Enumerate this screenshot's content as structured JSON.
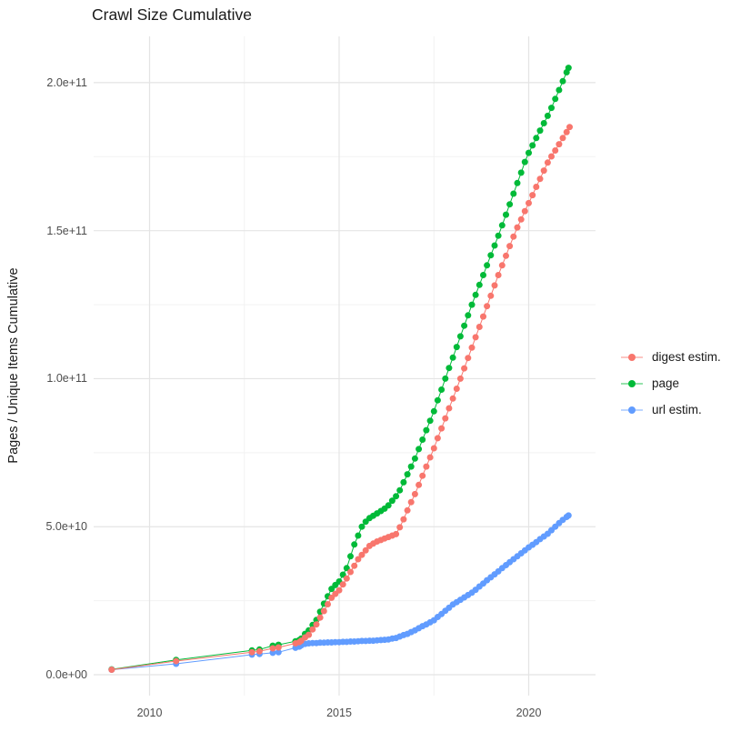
{
  "title": "Crawl Size Cumulative",
  "y_axis": {
    "title": "Pages / Unique Items Cumulative",
    "ticks": [
      {
        "value_billions": 0,
        "label": "0.0e+00"
      },
      {
        "value_billions": 50,
        "label": "5.0e+10"
      },
      {
        "value_billions": 100,
        "label": "1.0e+11"
      },
      {
        "value_billions": 150,
        "label": "1.5e+11"
      },
      {
        "value_billions": 200,
        "label": "2.0e+11"
      }
    ],
    "minor_billions": [
      25,
      75,
      125,
      175
    ]
  },
  "x_axis": {
    "ticks": [
      {
        "value": 2010,
        "label": "2010"
      },
      {
        "value": 2015,
        "label": "2015"
      },
      {
        "value": 2020,
        "label": "2020"
      }
    ],
    "minor": [
      2012.5,
      2017.5
    ]
  },
  "legend": {
    "items": [
      {
        "label": "digest estim.",
        "color": "#F8766D"
      },
      {
        "label": "page",
        "color": "#00BA38"
      },
      {
        "label": "url estim.",
        "color": "#619CFF"
      }
    ]
  },
  "chart_data": {
    "type": "scatter",
    "title": "Crawl Size Cumulative",
    "xlabel": "",
    "ylabel": "Pages / Unique Items Cumulative",
    "x_unit": "year",
    "y_unit": "count (billions, 1e9)",
    "xlim": [
      2008.5,
      2021.8
    ],
    "ylim_billions": [
      -8,
      216
    ],
    "grid": true,
    "legend_position": "right",
    "draw_order": [
      "page",
      "url estim.",
      "digest estim."
    ],
    "series": [
      {
        "name": "digest estim.",
        "color": "#F8766D",
        "points": [
          [
            2009.0,
            1.7
          ],
          [
            2010.7,
            4.6
          ],
          [
            2012.7,
            7.6
          ],
          [
            2012.9,
            7.9
          ],
          [
            2013.25,
            8.9
          ],
          [
            2013.4,
            9.2
          ],
          [
            2013.85,
            10.6
          ],
          [
            2013.95,
            11.0
          ],
          [
            2014.0,
            11.5
          ],
          [
            2014.1,
            12.6
          ],
          [
            2014.2,
            13.5
          ],
          [
            2014.3,
            15.3
          ],
          [
            2014.4,
            17
          ],
          [
            2014.5,
            19.3
          ],
          [
            2014.6,
            21.5
          ],
          [
            2014.7,
            23.8
          ],
          [
            2014.8,
            26
          ],
          [
            2014.9,
            27.3
          ],
          [
            2015.0,
            28.5
          ],
          [
            2015.1,
            30.5
          ],
          [
            2015.2,
            32.5
          ],
          [
            2015.3,
            34.7
          ],
          [
            2015.4,
            36.8
          ],
          [
            2015.5,
            39
          ],
          [
            2015.6,
            40.5
          ],
          [
            2015.7,
            42
          ],
          [
            2015.8,
            43.5
          ],
          [
            2015.9,
            44.3
          ],
          [
            2016.0,
            45
          ],
          [
            2016.1,
            45.5
          ],
          [
            2016.2,
            46
          ],
          [
            2016.3,
            46.5
          ],
          [
            2016.4,
            47
          ],
          [
            2016.5,
            47.5
          ],
          [
            2016.6,
            49.8
          ],
          [
            2016.7,
            52.5
          ],
          [
            2016.8,
            55.5
          ],
          [
            2016.9,
            58.3
          ],
          [
            2017.0,
            61
          ],
          [
            2017.1,
            64.1
          ],
          [
            2017.2,
            67.2
          ],
          [
            2017.3,
            70.3
          ],
          [
            2017.4,
            73.4
          ],
          [
            2017.5,
            76.5
          ],
          [
            2017.6,
            79.9
          ],
          [
            2017.7,
            83.2
          ],
          [
            2017.8,
            86.6
          ],
          [
            2017.9,
            90
          ],
          [
            2018.0,
            93.3
          ],
          [
            2018.1,
            96.6
          ],
          [
            2018.2,
            100
          ],
          [
            2018.3,
            103.5
          ],
          [
            2018.4,
            107
          ],
          [
            2018.5,
            110.5
          ],
          [
            2018.6,
            114
          ],
          [
            2018.7,
            117.5
          ],
          [
            2018.8,
            121
          ],
          [
            2018.9,
            124.5
          ],
          [
            2019.0,
            128
          ],
          [
            2019.1,
            131.5
          ],
          [
            2019.2,
            135
          ],
          [
            2019.3,
            138.3
          ],
          [
            2019.4,
            141.5
          ],
          [
            2019.5,
            144.8
          ],
          [
            2019.6,
            148
          ],
          [
            2019.7,
            151.1
          ],
          [
            2019.8,
            153.8
          ],
          [
            2019.9,
            156.6
          ],
          [
            2020.0,
            159.3
          ],
          [
            2020.1,
            162
          ],
          [
            2020.2,
            164.8
          ],
          [
            2020.3,
            167.5
          ],
          [
            2020.4,
            170.3
          ],
          [
            2020.5,
            173
          ],
          [
            2020.6,
            175.1
          ],
          [
            2020.7,
            177.1
          ],
          [
            2020.8,
            179.2
          ],
          [
            2020.9,
            181.3
          ],
          [
            2021.0,
            183.3
          ],
          [
            2021.08,
            185
          ]
        ]
      },
      {
        "name": "page",
        "color": "#00BA38",
        "points": [
          [
            2009.0,
            1.8
          ],
          [
            2010.7,
            5.0
          ],
          [
            2012.7,
            8.2
          ],
          [
            2012.9,
            8.5
          ],
          [
            2013.25,
            9.8
          ],
          [
            2013.4,
            10.1
          ],
          [
            2013.85,
            11.3
          ],
          [
            2013.95,
            11.7
          ],
          [
            2014.0,
            12.2
          ],
          [
            2014.1,
            13.8
          ],
          [
            2014.2,
            15
          ],
          [
            2014.3,
            16.8
          ],
          [
            2014.4,
            18.5
          ],
          [
            2014.5,
            21.3
          ],
          [
            2014.6,
            24
          ],
          [
            2014.7,
            26.5
          ],
          [
            2014.8,
            29
          ],
          [
            2014.9,
            30.3
          ],
          [
            2015.0,
            31.5
          ],
          [
            2015.1,
            33.8
          ],
          [
            2015.2,
            36
          ],
          [
            2015.3,
            40
          ],
          [
            2015.4,
            44
          ],
          [
            2015.5,
            47
          ],
          [
            2015.6,
            50
          ],
          [
            2015.7,
            51.7
          ],
          [
            2015.8,
            52.9
          ],
          [
            2015.9,
            53.7
          ],
          [
            2016.0,
            54.5
          ],
          [
            2016.1,
            55.3
          ],
          [
            2016.2,
            56.1
          ],
          [
            2016.3,
            57.2
          ],
          [
            2016.4,
            58.8
          ],
          [
            2016.5,
            60.3
          ],
          [
            2016.6,
            62.3
          ],
          [
            2016.7,
            65
          ],
          [
            2016.8,
            67.7
          ],
          [
            2016.9,
            70.3
          ],
          [
            2017.0,
            73
          ],
          [
            2017.1,
            76.2
          ],
          [
            2017.2,
            79.4
          ],
          [
            2017.3,
            82.6
          ],
          [
            2017.4,
            85.8
          ],
          [
            2017.5,
            89
          ],
          [
            2017.6,
            92.7
          ],
          [
            2017.7,
            96.3
          ],
          [
            2017.8,
            100
          ],
          [
            2017.9,
            103.6
          ],
          [
            2018.0,
            107.1
          ],
          [
            2018.1,
            110.7
          ],
          [
            2018.2,
            114.3
          ],
          [
            2018.3,
            117.9
          ],
          [
            2018.4,
            121.4
          ],
          [
            2018.5,
            125
          ],
          [
            2018.6,
            128.3
          ],
          [
            2018.7,
            131.7
          ],
          [
            2018.8,
            135
          ],
          [
            2018.9,
            138.3
          ],
          [
            2019.0,
            141.7
          ],
          [
            2019.1,
            145
          ],
          [
            2019.2,
            148.3
          ],
          [
            2019.3,
            151.8
          ],
          [
            2019.4,
            155.4
          ],
          [
            2019.5,
            158.9
          ],
          [
            2019.6,
            162.5
          ],
          [
            2019.7,
            166.1
          ],
          [
            2019.8,
            169.6
          ],
          [
            2019.9,
            173.2
          ],
          [
            2020.0,
            176.3
          ],
          [
            2020.1,
            178.8
          ],
          [
            2020.2,
            181.3
          ],
          [
            2020.3,
            183.8
          ],
          [
            2020.4,
            186.3
          ],
          [
            2020.5,
            188.8
          ],
          [
            2020.6,
            191.5
          ],
          [
            2020.7,
            194.5
          ],
          [
            2020.8,
            197.5
          ],
          [
            2020.9,
            200.5
          ],
          [
            2021.0,
            203.5
          ],
          [
            2021.05,
            205
          ]
        ]
      },
      {
        "name": "url estim.",
        "color": "#619CFF",
        "points": [
          [
            2009.0,
            1.7
          ],
          [
            2010.7,
            3.7
          ],
          [
            2012.7,
            6.8
          ],
          [
            2012.9,
            7.0
          ],
          [
            2013.25,
            7.4
          ],
          [
            2013.4,
            7.6
          ],
          [
            2013.85,
            9.1
          ],
          [
            2013.95,
            9.5
          ],
          [
            2014.0,
            9.9
          ],
          [
            2014.1,
            10.4
          ],
          [
            2014.2,
            10.6
          ],
          [
            2014.3,
            10.7
          ],
          [
            2014.4,
            10.7
          ],
          [
            2014.5,
            10.8
          ],
          [
            2014.6,
            10.8
          ],
          [
            2014.7,
            10.9
          ],
          [
            2014.8,
            10.9
          ],
          [
            2014.9,
            11
          ],
          [
            2015.0,
            11
          ],
          [
            2015.1,
            11.1
          ],
          [
            2015.2,
            11.1
          ],
          [
            2015.3,
            11.2
          ],
          [
            2015.4,
            11.2
          ],
          [
            2015.5,
            11.3
          ],
          [
            2015.6,
            11.4
          ],
          [
            2015.7,
            11.4
          ],
          [
            2015.8,
            11.5
          ],
          [
            2015.9,
            11.5
          ],
          [
            2016.0,
            11.6
          ],
          [
            2016.1,
            11.7
          ],
          [
            2016.2,
            11.8
          ],
          [
            2016.3,
            11.9
          ],
          [
            2016.4,
            12.2
          ],
          [
            2016.5,
            12.4
          ],
          [
            2016.6,
            12.9
          ],
          [
            2016.7,
            13.4
          ],
          [
            2016.8,
            13.8
          ],
          [
            2016.9,
            14.4
          ],
          [
            2017.0,
            15
          ],
          [
            2017.1,
            15.7
          ],
          [
            2017.2,
            16.4
          ],
          [
            2017.3,
            17
          ],
          [
            2017.4,
            17.7
          ],
          [
            2017.5,
            18.4
          ],
          [
            2017.6,
            19.5
          ],
          [
            2017.7,
            20.5
          ],
          [
            2017.8,
            21.6
          ],
          [
            2017.9,
            22.6
          ],
          [
            2018.0,
            23.7
          ],
          [
            2018.1,
            24.5
          ],
          [
            2018.2,
            25.3
          ],
          [
            2018.3,
            26.1
          ],
          [
            2018.4,
            26.9
          ],
          [
            2018.5,
            27.7
          ],
          [
            2018.6,
            28.7
          ],
          [
            2018.7,
            29.8
          ],
          [
            2018.8,
            30.8
          ],
          [
            2018.9,
            31.9
          ],
          [
            2019.0,
            32.9
          ],
          [
            2019.1,
            33.9
          ],
          [
            2019.2,
            34.9
          ],
          [
            2019.3,
            36
          ],
          [
            2019.4,
            37
          ],
          [
            2019.5,
            38
          ],
          [
            2019.6,
            39
          ],
          [
            2019.7,
            40
          ],
          [
            2019.8,
            41
          ],
          [
            2019.9,
            42
          ],
          [
            2020.0,
            43
          ],
          [
            2020.1,
            43.9
          ],
          [
            2020.2,
            44.8
          ],
          [
            2020.3,
            45.8
          ],
          [
            2020.4,
            46.7
          ],
          [
            2020.5,
            47.6
          ],
          [
            2020.6,
            48.8
          ],
          [
            2020.7,
            50
          ],
          [
            2020.8,
            51.2
          ],
          [
            2020.9,
            52.3
          ],
          [
            2021.0,
            53.3
          ],
          [
            2021.05,
            53.8
          ]
        ]
      }
    ]
  }
}
